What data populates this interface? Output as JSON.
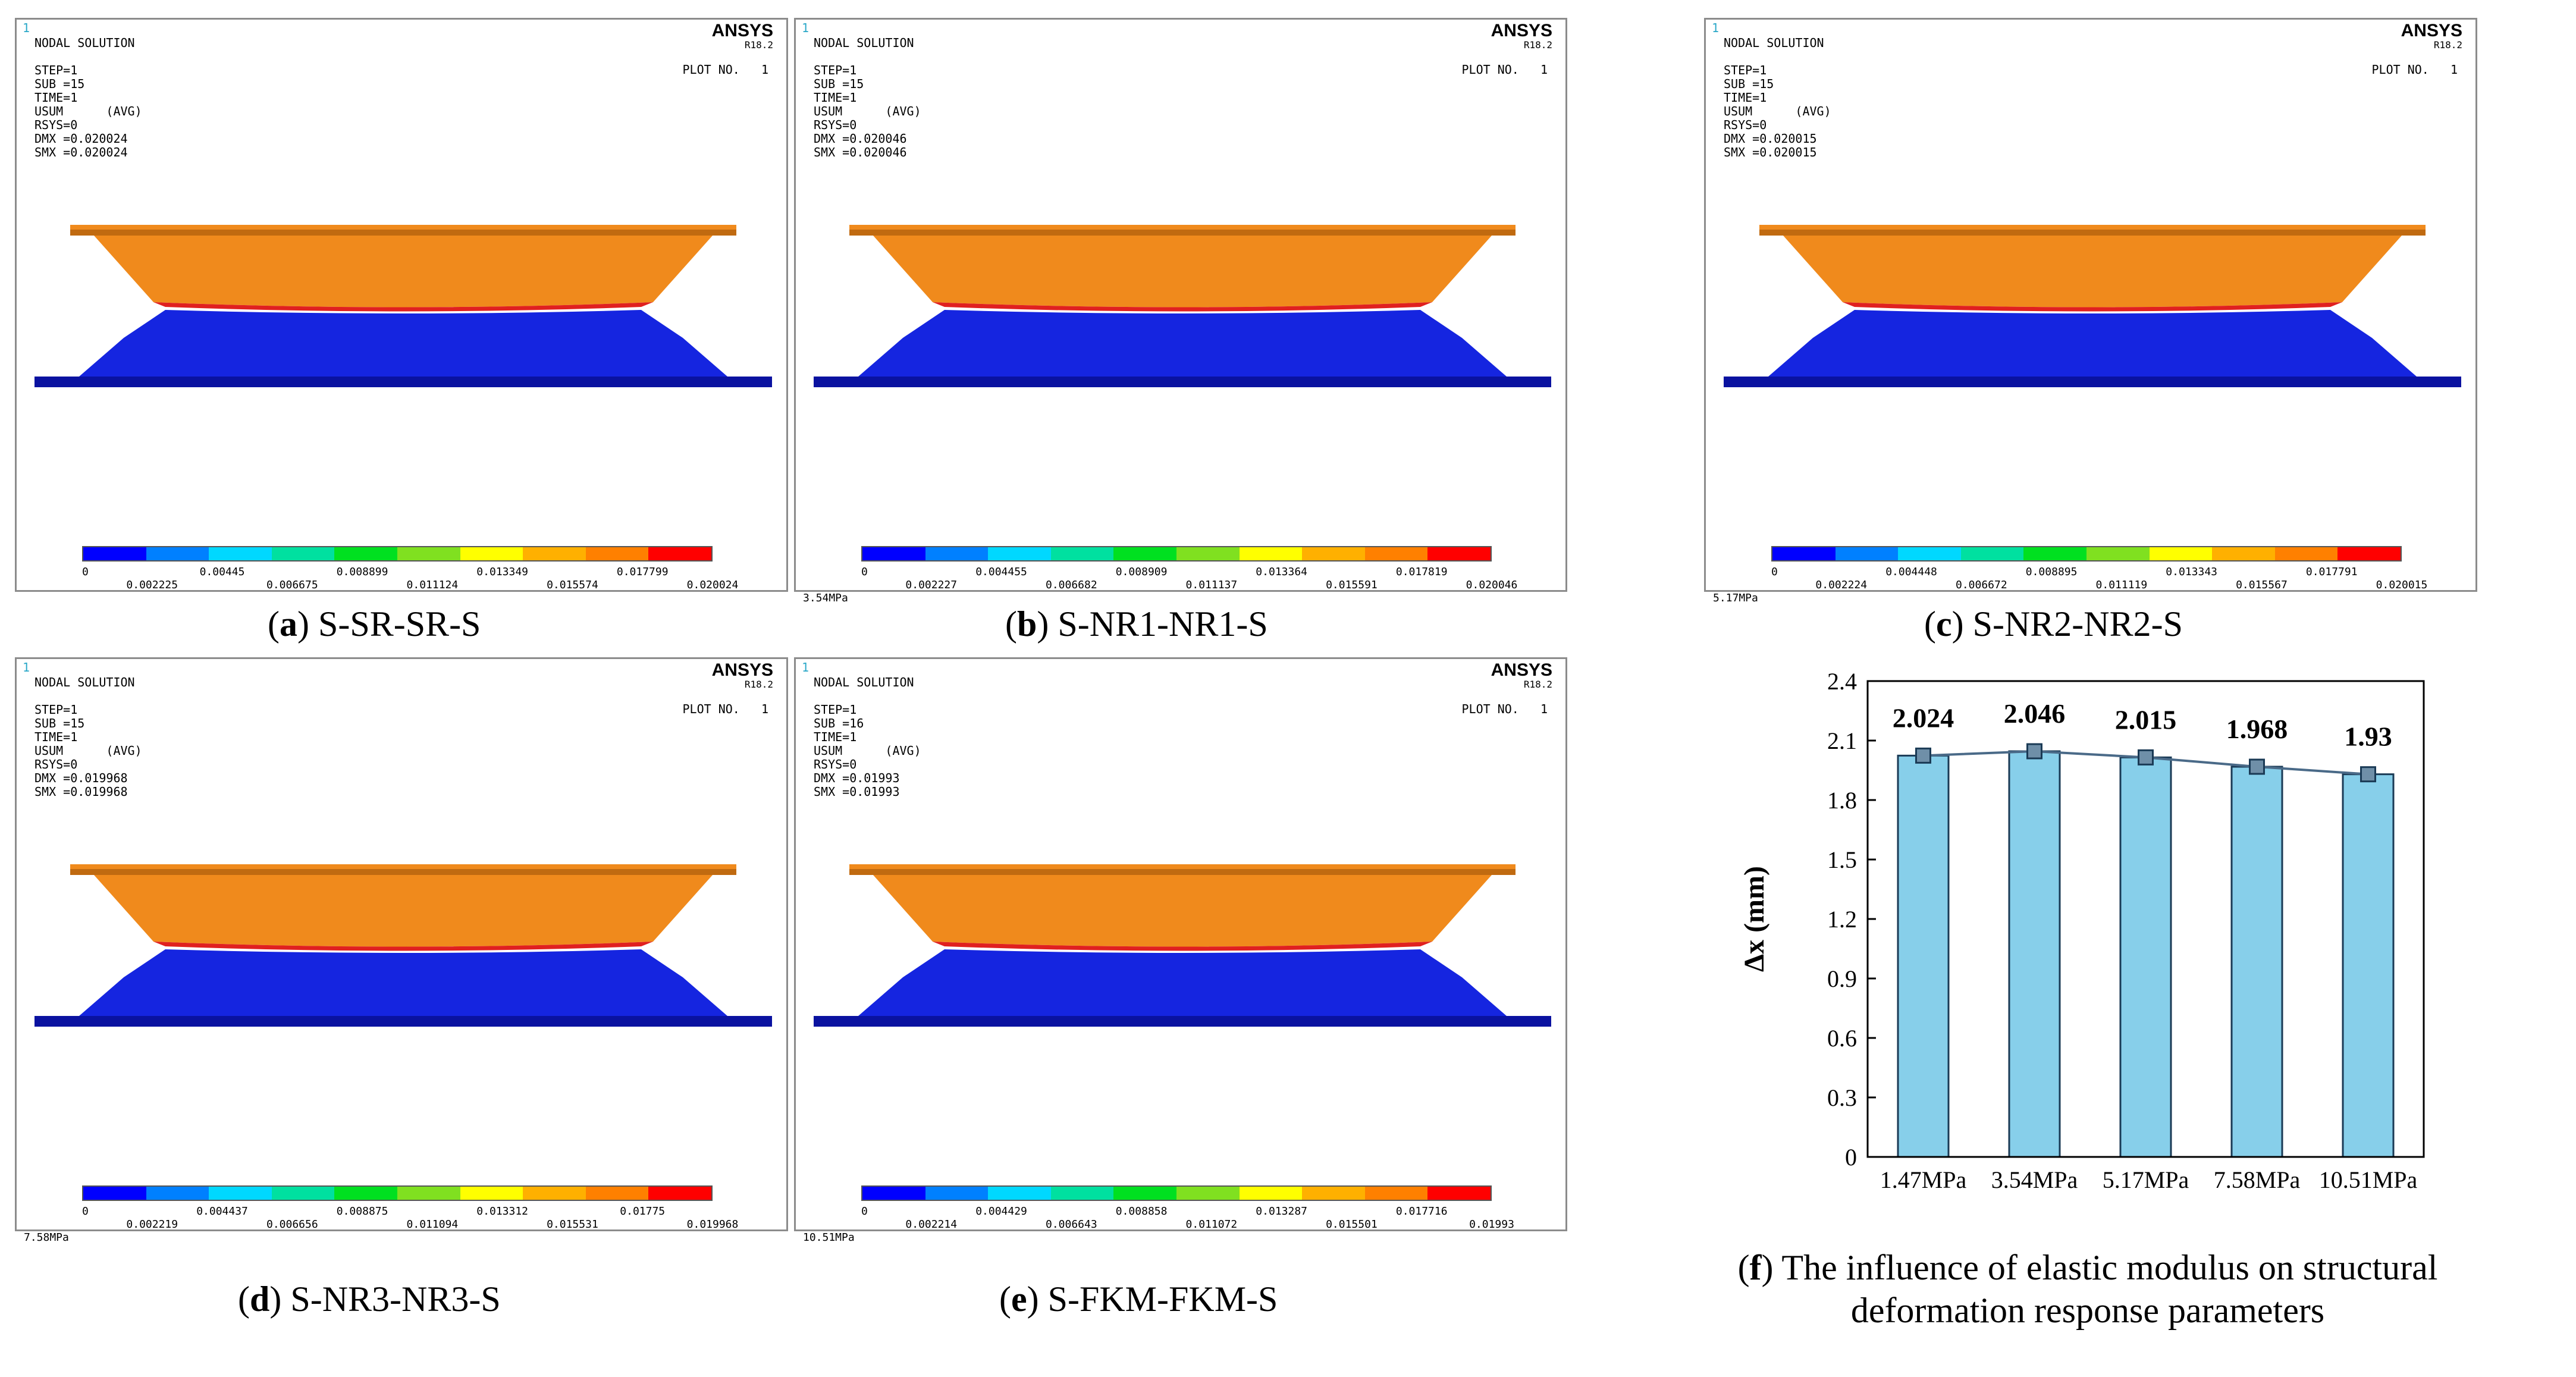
{
  "panels": [
    {
      "id": "a",
      "header": [
        "NODAL SOLUTION",
        "",
        "STEP=1",
        "SUB =15",
        "TIME=1",
        "USUM      (AVG)",
        "RSYS=0",
        "DMX =0.020024",
        "SMX =0.020024"
      ],
      "corner": "1",
      "brand": "ANSYS",
      "version": "R18.2",
      "plot_no": "PLOT NO.   1",
      "legend_labels_top": [
        "0",
        "0.00445",
        "0.008899",
        "0.013349",
        "0.017799"
      ],
      "legend_labels_bottom": [
        "0.002225",
        "0.006675",
        "0.011124",
        "0.015574",
        "0.020024"
      ],
      "pressure": "",
      "caption_letter": "a",
      "caption_text": " S-SR-SR-S"
    },
    {
      "id": "b",
      "header": [
        "NODAL SOLUTION",
        "",
        "STEP=1",
        "SUB =15",
        "TIME=1",
        "USUM      (AVG)",
        "RSYS=0",
        "DMX =0.020046",
        "SMX =0.020046"
      ],
      "corner": "1",
      "brand": "ANSYS",
      "version": "R18.2",
      "plot_no": "PLOT NO.   1",
      "legend_labels_top": [
        "0",
        "0.004455",
        "0.008909",
        "0.013364",
        "0.017819"
      ],
      "legend_labels_bottom": [
        "0.002227",
        "0.006682",
        "0.011137",
        "0.015591",
        "0.020046"
      ],
      "pressure": "3.54MPa",
      "caption_letter": "b",
      "caption_text": " S-NR1-NR1-S"
    },
    {
      "id": "c",
      "header": [
        "NODAL SOLUTION",
        "",
        "STEP=1",
        "SUB =15",
        "TIME=1",
        "USUM      (AVG)",
        "RSYS=0",
        "DMX =0.020015",
        "SMX =0.020015"
      ],
      "corner": "1",
      "brand": "ANSYS",
      "version": "R18.2",
      "plot_no": "PLOT NO.   1",
      "legend_labels_top": [
        "0",
        "0.004448",
        "0.008895",
        "0.013343",
        "0.017791"
      ],
      "legend_labels_bottom": [
        "0.002224",
        "0.006672",
        "0.011119",
        "0.015567",
        "0.020015"
      ],
      "pressure": "5.17MPa",
      "caption_letter": "c",
      "caption_text": " S-NR2-NR2-S"
    },
    {
      "id": "d",
      "header": [
        "NODAL SOLUTION",
        "",
        "STEP=1",
        "SUB =15",
        "TIME=1",
        "USUM      (AVG)",
        "RSYS=0",
        "DMX =0.019968",
        "SMX =0.019968"
      ],
      "corner": "1",
      "brand": "ANSYS",
      "version": "R18.2",
      "plot_no": "PLOT NO.   1",
      "legend_labels_top": [
        "0",
        "0.004437",
        "0.008875",
        "0.013312",
        "0.01775"
      ],
      "legend_labels_bottom": [
        "0.002219",
        "0.006656",
        "0.011094",
        "0.015531",
        "0.019968"
      ],
      "pressure": "7.58MPa",
      "caption_letter": "d",
      "caption_text": " S-NR3-NR3-S"
    },
    {
      "id": "e",
      "header": [
        "NODAL SOLUTION",
        "",
        "STEP=1",
        "SUB =16",
        "TIME=1",
        "USUM      (AVG)",
        "RSYS=0",
        "DMX =0.01993",
        "SMX =0.01993"
      ],
      "corner": "1",
      "brand": "ANSYS",
      "version": "R18.2",
      "plot_no": "PLOT NO.   1",
      "legend_labels_top": [
        "0",
        "0.004429",
        "0.008858",
        "0.013287",
        "0.017716"
      ],
      "legend_labels_bottom": [
        "0.002214",
        "0.006643",
        "0.011072",
        "0.015501",
        "0.01993"
      ],
      "pressure": "10.51MPa",
      "caption_letter": "e",
      "caption_text": " S-FKM-FKM-S"
    }
  ],
  "legend_colors": [
    "#0000ff",
    "#0080ff",
    "#00d8ff",
    "#00e0a0",
    "#00e020",
    "#80e020",
    "#ffff00",
    "#ffb000",
    "#ff8000",
    "#ff0000"
  ],
  "model_colors": {
    "upper": "#f08a1c",
    "upper_dark": "#c06a10",
    "lower": "#1525e0",
    "lower_dark": "#0a12a0",
    "contact": "#e02020"
  },
  "chart_caption": {
    "letter": "f",
    "line1": " The influence of elastic modulus on structural",
    "line2": "deformation response parameters"
  },
  "chart_data": {
    "type": "bar",
    "categories": [
      "1.47MPa",
      "3.54MPa",
      "5.17MPa",
      "7.58MPa",
      "10.51MPa"
    ],
    "values": [
      2.024,
      2.046,
      2.015,
      1.968,
      1.93
    ],
    "value_labels": [
      "2.024",
      "2.046",
      "2.015",
      "1.968",
      "1.93"
    ],
    "ylabel": "Δx (mm)",
    "ylim": [
      0,
      2.4
    ],
    "yticks": [
      "0",
      "0.3",
      "0.6",
      "0.9",
      "1.2",
      "1.5",
      "1.8",
      "2.1",
      "2.4"
    ],
    "bar_color": "#87cfea",
    "line_color": "#4a6a88",
    "overlay": "line with square markers"
  }
}
